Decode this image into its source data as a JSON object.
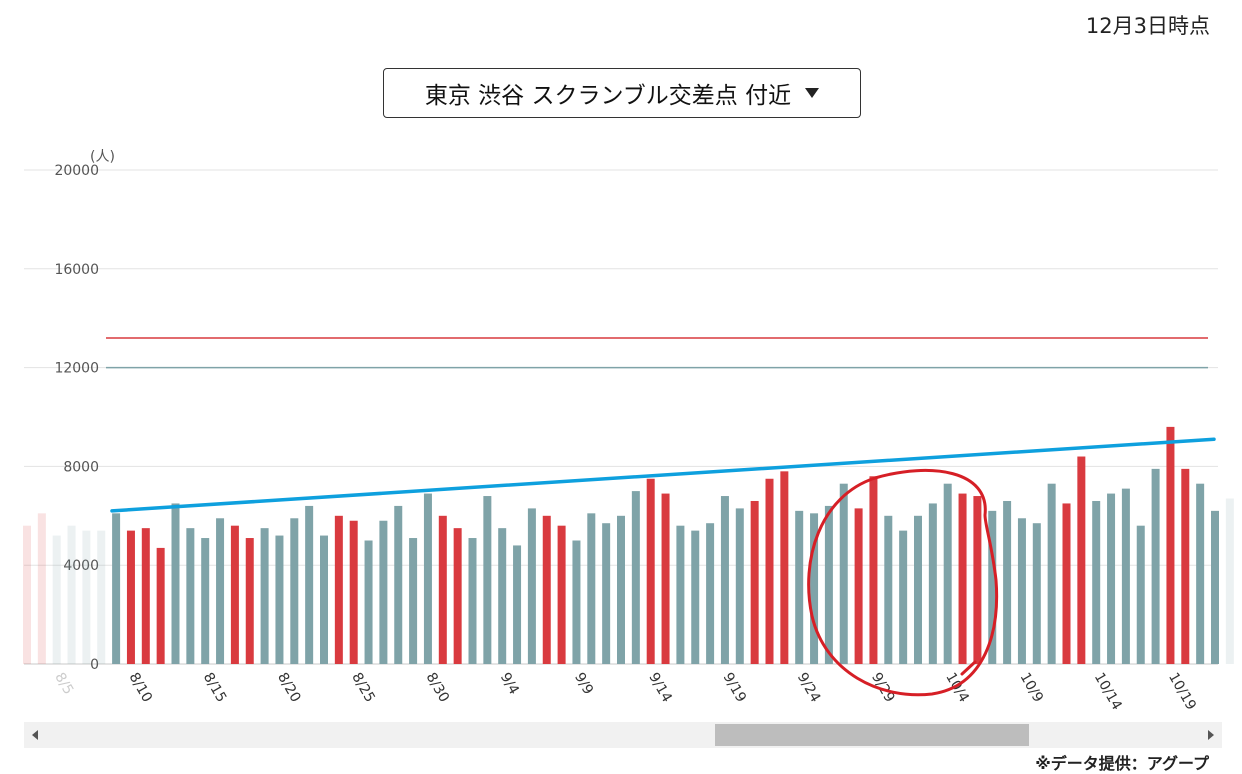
{
  "header": {
    "timestamp": "12月3日時点",
    "location_select": "東京 渋谷 スクランブル交差点 付近"
  },
  "credit": "※データ提供：アグープ",
  "colors": {
    "weekday_bar": "#7fa3a8",
    "weekend_bar": "#d93a3f",
    "trend_line": "#0ea0de",
    "reference_red": "#d93a3f",
    "reference_blue": "#7fa3a8",
    "annotation_circle": "#d61f26",
    "grid": "#e3e3e3"
  },
  "chart_data": {
    "type": "bar",
    "unit_label": "(人)",
    "ylim": [
      0,
      20000
    ],
    "y_ticks": [
      0,
      4000,
      8000,
      12000,
      16000,
      20000
    ],
    "x_tick_labels": [
      "8/5",
      "8/10",
      "8/15",
      "8/20",
      "8/25",
      "8/30",
      "9/4",
      "9/9",
      "9/14",
      "9/19",
      "9/24",
      "9/29",
      "10/4",
      "10/9",
      "10/14",
      "10/19"
    ],
    "series": [
      {
        "values": [
          5600,
          6100,
          5200,
          5600,
          5400,
          5400,
          6100,
          5400,
          5500,
          4700,
          6500,
          5500,
          5100,
          5900,
          5600,
          5100,
          5500,
          5200,
          5900,
          6400,
          5200,
          6000,
          5800,
          5000,
          5800,
          6400,
          5100,
          6900,
          6000,
          5500,
          5100,
          6800,
          5500,
          4800,
          6300,
          6000,
          5600,
          5000,
          6100,
          5700,
          6000,
          7000,
          7500,
          6900,
          5600,
          5400,
          5700,
          6800,
          6300,
          6600,
          7500,
          7800,
          6200,
          6100,
          6400,
          7300,
          6300,
          7600,
          6000,
          5400,
          6000,
          6500,
          7300,
          6900,
          6800,
          6200,
          6600,
          5900,
          5700,
          7300,
          6500,
          8400,
          6600,
          6900,
          7100,
          5600,
          7900,
          9600,
          7900,
          7300,
          6200,
          6700
        ],
        "weekend": [
          true,
          true,
          false,
          false,
          false,
          false,
          false,
          true,
          true,
          true,
          false,
          false,
          false,
          false,
          true,
          true,
          false,
          false,
          false,
          false,
          false,
          true,
          true,
          false,
          false,
          false,
          false,
          false,
          true,
          true,
          false,
          false,
          false,
          false,
          false,
          true,
          true,
          false,
          false,
          false,
          false,
          false,
          true,
          true,
          false,
          false,
          false,
          false,
          false,
          true,
          true,
          true,
          false,
          false,
          false,
          false,
          true,
          true,
          false,
          false,
          false,
          false,
          false,
          true,
          true,
          false,
          false,
          false,
          false,
          false,
          true,
          true,
          false,
          false,
          false,
          false,
          false,
          true,
          true,
          false,
          false,
          false
        ]
      }
    ],
    "reference_lines": [
      13200,
      12000
    ],
    "trend_line": {
      "start": 6200,
      "end": 9100
    },
    "faded_leading_bars": 6,
    "faded_trailing_bars": 1
  }
}
